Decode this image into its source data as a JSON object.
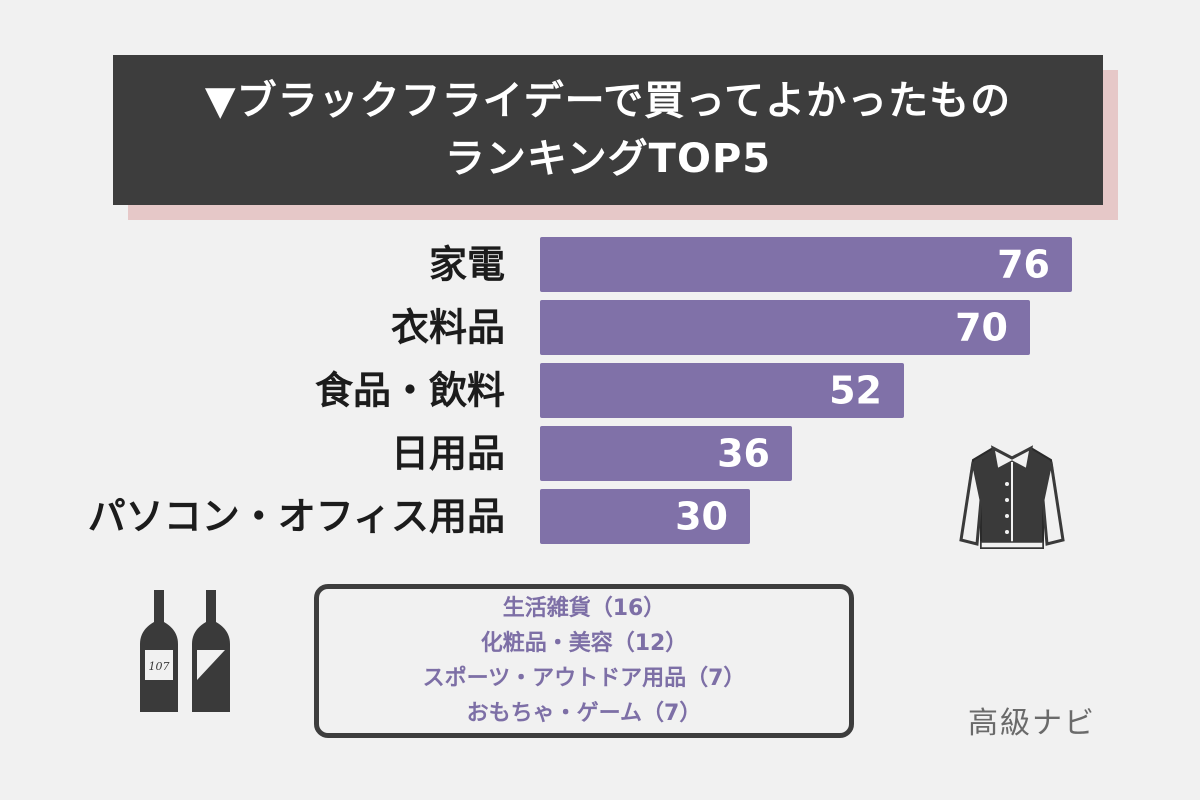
{
  "header": {
    "title_line1": "▼ブラックフライデーで買ってよかったもの",
    "title_line2": "ランキングTOP5"
  },
  "colors": {
    "bar": "#8071a8",
    "title_bg": "#3d3d3d",
    "title_shadow": "#e6c8c8",
    "others_text": "#7d6fa6"
  },
  "chart_data": {
    "type": "bar",
    "orientation": "horizontal",
    "categories": [
      "家電",
      "衣料品",
      "食品・飲料",
      "日用品",
      "パソコン・オフィス用品"
    ],
    "values": [
      76,
      70,
      52,
      36,
      30
    ],
    "title": "▼ブラックフライデーで買ってよかったもの ランキングTOP5",
    "xlabel": "",
    "ylabel": "",
    "xlim": [
      0,
      80
    ],
    "grid": false,
    "data_labels": true
  },
  "others": {
    "items": [
      "生活雑貨（16）",
      "化粧品・美容（12）",
      "スポーツ・アウトドア用品（7）",
      "おもちゃ・ゲーム（7）"
    ]
  },
  "bottle1_label": "107",
  "brand": "高級ナビ",
  "icons": [
    "jacket-icon",
    "wine-bottles-icon"
  ]
}
